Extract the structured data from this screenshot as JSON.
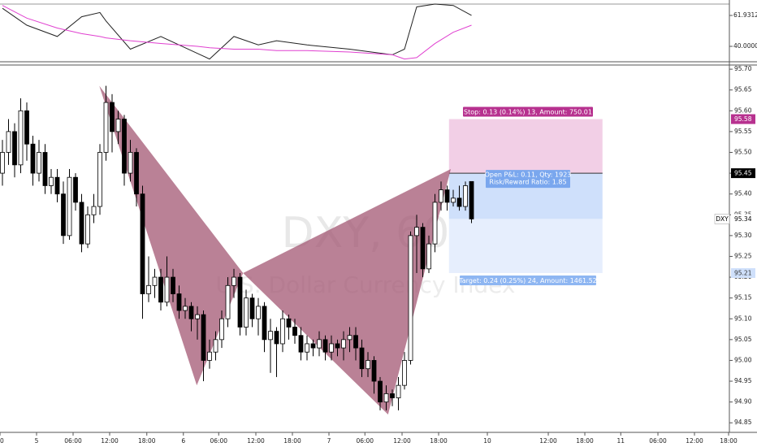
{
  "chart_data": [
    {
      "type": "line",
      "x": [
        0,
        4,
        9,
        13,
        16,
        17,
        21,
        26,
        32,
        34,
        38,
        42,
        45,
        50,
        57,
        64,
        66,
        68,
        71,
        74,
        77
      ],
      "series": [
        {
          "color": "#222222",
          "values": [
            67,
            55,
            47,
            61,
            64,
            58,
            38,
            47,
            35,
            31,
            47,
            41,
            44,
            41,
            38,
            34,
            38,
            68,
            70,
            69,
            61.9312
          ]
        },
        {
          "color": "#e040d0",
          "values": [
            69,
            60,
            53,
            49,
            47,
            46,
            44,
            42,
            40,
            39,
            38,
            38,
            37,
            37,
            36,
            34,
            31,
            32,
            42,
            50,
            55
          ]
        }
      ],
      "xlim": [
        -0.4,
        119.33
      ],
      "ylim": [
        29.63,
        70
      ],
      "yticks": [
        {
          "value": 61.9312,
          "label": "61.9312"
        },
        {
          "value": 40,
          "label": "40.0000"
        }
      ]
    },
    {
      "type": "candlestick",
      "symbol": "DXY",
      "watermark": "DXY, 60",
      "subtitle": "U.S. Dollar Currency Index",
      "up_color": "#ffffff",
      "down_color": "#000000",
      "open": [
        95.45,
        95.5,
        95.55,
        95.47,
        95.6,
        95.52,
        95.45,
        95.5,
        95.42,
        95.44,
        95.4,
        95.3,
        95.44,
        95.38,
        95.28,
        95.35,
        95.37,
        95.5,
        95.62,
        95.55,
        95.58,
        95.45,
        95.5,
        95.4,
        95.16,
        95.18,
        95.2,
        95.14,
        95.2,
        95.16,
        95.12,
        95.13,
        95.1,
        95.11,
        95.0,
        95.02,
        95.05,
        95.1,
        95.18,
        95.2,
        95.08,
        95.15,
        95.1,
        95.13,
        95.05,
        95.07,
        95.04,
        95.1,
        95.08,
        95.06,
        95.02,
        95.04,
        95.03,
        95.05,
        95.02,
        95.04,
        95.03,
        95.05,
        95.06,
        95.03,
        94.98,
        95.0,
        94.95,
        94.9,
        94.92,
        94.91,
        94.94,
        95.0,
        95.3,
        95.32,
        95.22,
        95.28,
        95.38,
        95.41,
        95.38,
        95.39,
        95.37,
        95.43
      ],
      "high": [
        95.53,
        95.58,
        95.57,
        95.63,
        95.62,
        95.54,
        95.53,
        95.52,
        95.46,
        95.46,
        95.43,
        95.46,
        95.45,
        95.4,
        95.37,
        95.4,
        95.52,
        95.66,
        95.64,
        95.6,
        95.59,
        95.53,
        95.51,
        95.42,
        95.25,
        95.22,
        95.22,
        95.25,
        95.22,
        95.18,
        95.15,
        95.14,
        95.13,
        95.12,
        95.05,
        95.07,
        95.12,
        95.2,
        95.22,
        95.21,
        95.17,
        95.16,
        95.15,
        95.14,
        95.1,
        95.08,
        95.12,
        95.11,
        95.1,
        95.08,
        95.06,
        95.05,
        95.07,
        95.06,
        95.06,
        95.05,
        95.07,
        95.08,
        95.08,
        95.05,
        95.02,
        95.01,
        94.96,
        94.94,
        94.93,
        94.96,
        95.02,
        95.31,
        95.35,
        95.33,
        95.3,
        95.4,
        95.43,
        95.42,
        95.41,
        95.42,
        95.43,
        95.43
      ],
      "low": [
        95.42,
        95.47,
        95.44,
        95.45,
        95.48,
        95.42,
        95.43,
        95.4,
        95.4,
        95.38,
        95.28,
        95.29,
        95.36,
        95.26,
        95.27,
        95.33,
        95.35,
        95.48,
        95.5,
        95.52,
        95.42,
        95.43,
        95.37,
        95.1,
        95.14,
        95.15,
        95.12,
        95.13,
        95.14,
        95.1,
        95.1,
        95.07,
        95.05,
        94.95,
        94.98,
        95.0,
        95.03,
        95.08,
        95.15,
        95.06,
        95.06,
        95.08,
        95.06,
        95.02,
        94.97,
        94.96,
        95.02,
        95.05,
        95.04,
        95.0,
        95.0,
        95.01,
        95.01,
        95.0,
        95.0,
        95.01,
        95.0,
        95.02,
        95.0,
        94.96,
        94.96,
        94.92,
        94.88,
        94.88,
        94.89,
        94.88,
        94.93,
        94.99,
        95.21,
        95.2,
        95.21,
        95.26,
        95.36,
        95.36,
        95.37,
        95.36,
        95.36,
        95.33
      ],
      "close": [
        95.5,
        95.55,
        95.47,
        95.6,
        95.52,
        95.45,
        95.5,
        95.42,
        95.44,
        95.4,
        95.3,
        95.44,
        95.38,
        95.28,
        95.35,
        95.37,
        95.5,
        95.62,
        95.55,
        95.58,
        95.45,
        95.5,
        95.4,
        95.16,
        95.18,
        95.2,
        95.14,
        95.2,
        95.16,
        95.12,
        95.13,
        95.1,
        95.11,
        95.0,
        95.02,
        95.05,
        95.1,
        95.18,
        95.2,
        95.08,
        95.15,
        95.1,
        95.13,
        95.05,
        95.07,
        95.04,
        95.1,
        95.08,
        95.06,
        95.02,
        95.04,
        95.03,
        95.05,
        95.02,
        95.04,
        95.03,
        95.05,
        95.06,
        95.03,
        94.98,
        95.0,
        94.95,
        94.9,
        94.92,
        94.91,
        94.94,
        95.0,
        95.3,
        95.32,
        95.22,
        95.28,
        95.38,
        95.41,
        95.38,
        95.39,
        95.37,
        95.42,
        95.34
      ],
      "last_price": {
        "value": 95.34,
        "label": "95.34"
      },
      "pattern": {
        "color": "#a0506e",
        "x": [
          15.9,
          31.9,
          39.5,
          63.3,
          73.6
        ],
        "y": [
          95.66,
          94.94,
          95.21,
          94.87,
          95.46
        ]
      },
      "position": {
        "x": [
          73.3,
          98.5
        ],
        "entry": {
          "value": 95.45,
          "label": "95.45"
        },
        "stop": {
          "value": 95.58,
          "label": "95.58"
        },
        "target": {
          "value": 95.21,
          "label": "95.21"
        },
        "stop_text": "Stop: 0.13 (0.14%) 13, Amount: 750.01",
        "pnl_text": "Open P&L: 0.11, Qty: 1923",
        "ratio_text": "Risk/Reward Ratio: 1.85",
        "target_text": "Target: 0.24 (0.25%) 24, Amount: 1461.52"
      },
      "xlim": [
        -0.4,
        119.33
      ],
      "ylim": [
        94.827,
        95.71
      ],
      "yticks": [
        {
          "value": 95.7,
          "label": "95.70"
        },
        {
          "value": 95.65,
          "label": "95.65"
        },
        {
          "value": 95.6,
          "label": "95.60"
        },
        {
          "value": 95.55,
          "label": "95.55"
        },
        {
          "value": 95.5,
          "label": "95.50"
        },
        {
          "value": 95.45,
          "label": "95.45"
        },
        {
          "value": 95.4,
          "label": "95.40"
        },
        {
          "value": 95.35,
          "label": "95.35"
        },
        {
          "value": 95.3,
          "label": "95.30"
        },
        {
          "value": 95.25,
          "label": "95.25"
        },
        {
          "value": 95.2,
          "label": "95.20"
        },
        {
          "value": 95.15,
          "label": "95.15"
        },
        {
          "value": 95.1,
          "label": "95.10"
        },
        {
          "value": 95.05,
          "label": "95.05"
        },
        {
          "value": 95.0,
          "label": "95.00"
        },
        {
          "value": 94.95,
          "label": "94.95"
        },
        {
          "value": 94.9,
          "label": "94.90"
        },
        {
          "value": 94.85,
          "label": "94.85"
        }
      ],
      "xticks": [
        {
          "value": -0.4,
          "label": "00"
        },
        {
          "value": 5.6,
          "label": "5"
        },
        {
          "value": 11.6,
          "label": "06:00"
        },
        {
          "value": 17.6,
          "label": "12:00"
        },
        {
          "value": 23.7,
          "label": "18:00"
        },
        {
          "value": 29.7,
          "label": "6"
        },
        {
          "value": 35.5,
          "label": "06:00"
        },
        {
          "value": 41.6,
          "label": "12:00"
        },
        {
          "value": 47.6,
          "label": "18:00"
        },
        {
          "value": 53.6,
          "label": "7"
        },
        {
          "value": 59.5,
          "label": "06:00"
        },
        {
          "value": 65.6,
          "label": "12:00"
        },
        {
          "value": 71.6,
          "label": "18:00"
        },
        {
          "value": 79.6,
          "label": "10"
        },
        {
          "value": 89.6,
          "label": "12:00"
        },
        {
          "value": 95.6,
          "label": "18:00"
        },
        {
          "value": 101.5,
          "label": "11"
        },
        {
          "value": 107.6,
          "label": "06:00"
        },
        {
          "value": 113.6,
          "label": "12:00"
        },
        {
          "value": 119.2,
          "label": "18:00"
        }
      ]
    }
  ]
}
